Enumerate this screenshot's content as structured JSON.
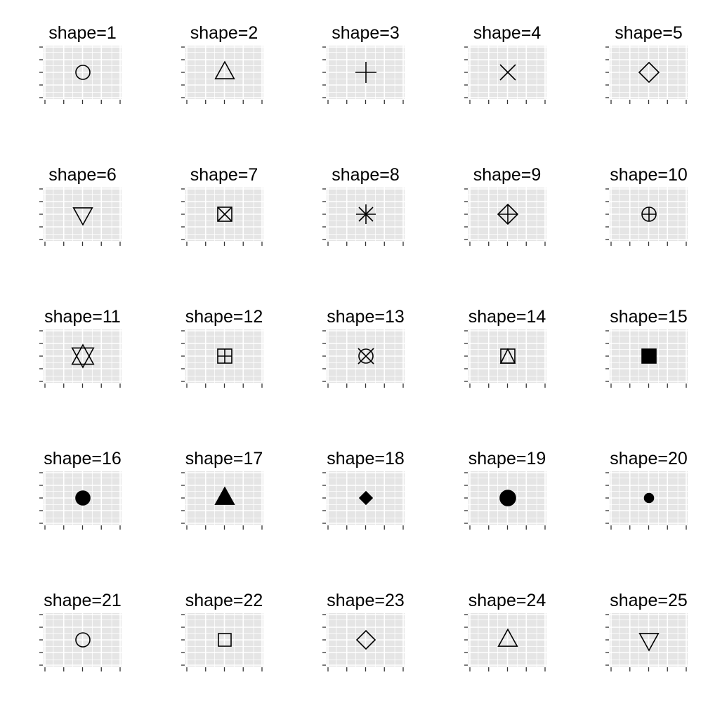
{
  "chart_data": {
    "type": "scatter",
    "layout": "facet-grid",
    "grid_cols": 5,
    "grid_rows": 5,
    "panel_background": "#e5e5e5",
    "gridline_color": "#ffffff",
    "mark_color": "#000000",
    "x": [
      0
    ],
    "y": [
      0
    ],
    "xlim": [
      -1,
      1
    ],
    "ylim": [
      -1,
      1
    ],
    "panels": [
      {
        "title": "shape=1",
        "shape": 1,
        "glyph": "open-circle"
      },
      {
        "title": "shape=2",
        "shape": 2,
        "glyph": "open-triangle-up"
      },
      {
        "title": "shape=3",
        "shape": 3,
        "glyph": "plus"
      },
      {
        "title": "shape=4",
        "shape": 4,
        "glyph": "cross"
      },
      {
        "title": "shape=5",
        "shape": 5,
        "glyph": "open-diamond"
      },
      {
        "title": "shape=6",
        "shape": 6,
        "glyph": "open-triangle-down"
      },
      {
        "title": "shape=7",
        "shape": 7,
        "glyph": "square-cross"
      },
      {
        "title": "shape=8",
        "shape": 8,
        "glyph": "asterisk"
      },
      {
        "title": "shape=9",
        "shape": 9,
        "glyph": "diamond-plus"
      },
      {
        "title": "shape=10",
        "shape": 10,
        "glyph": "circle-plus"
      },
      {
        "title": "shape=11",
        "shape": 11,
        "glyph": "triangles-up-down"
      },
      {
        "title": "shape=12",
        "shape": 12,
        "glyph": "square-plus"
      },
      {
        "title": "shape=13",
        "shape": 13,
        "glyph": "circle-cross"
      },
      {
        "title": "shape=14",
        "shape": 14,
        "glyph": "square-triangle"
      },
      {
        "title": "shape=15",
        "shape": 15,
        "glyph": "filled-square"
      },
      {
        "title": "shape=16",
        "shape": 16,
        "glyph": "filled-circle"
      },
      {
        "title": "shape=17",
        "shape": 17,
        "glyph": "filled-triangle"
      },
      {
        "title": "shape=18",
        "shape": 18,
        "glyph": "filled-diamond"
      },
      {
        "title": "shape=19",
        "shape": 19,
        "glyph": "filled-circle-large"
      },
      {
        "title": "shape=20",
        "shape": 20,
        "glyph": "filled-circle-small"
      },
      {
        "title": "shape=21",
        "shape": 21,
        "glyph": "fillable-circle"
      },
      {
        "title": "shape=22",
        "shape": 22,
        "glyph": "fillable-square"
      },
      {
        "title": "shape=23",
        "shape": 23,
        "glyph": "fillable-diamond"
      },
      {
        "title": "shape=24",
        "shape": 24,
        "glyph": "fillable-triangle-up"
      },
      {
        "title": "shape=25",
        "shape": 25,
        "glyph": "fillable-triangle-down"
      }
    ]
  }
}
